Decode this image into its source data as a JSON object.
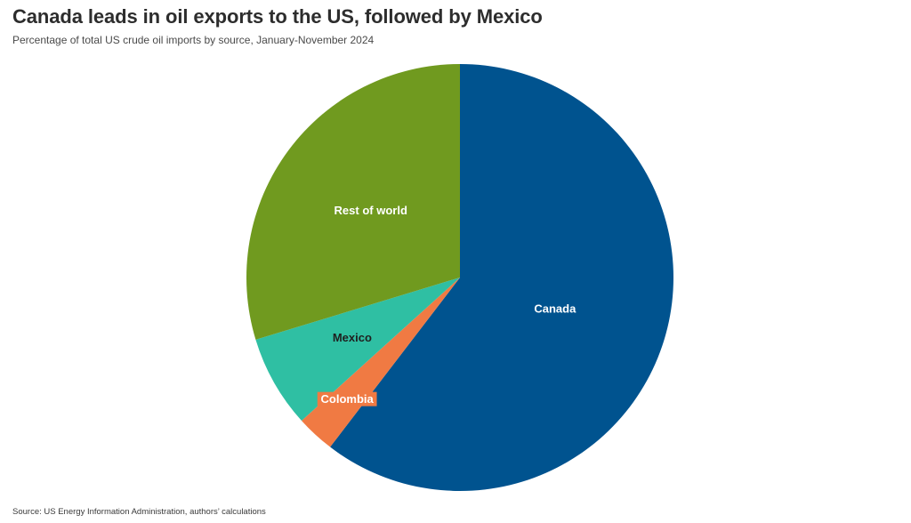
{
  "header": {
    "title": "Canada leads in oil exports to the US, followed by Mexico",
    "subtitle": "Percentage of total US crude oil imports by source, January-November 2024"
  },
  "footer": {
    "source": "Source: US Energy Information Administration, authors’ calculations"
  },
  "chart_data": {
    "type": "pie",
    "title": "Canada leads in oil exports to the US, followed by Mexico",
    "subtitle": "Percentage of total US crude oil imports by source, January-November 2024",
    "start_angle": "12 o'clock",
    "direction": "clockwise",
    "slices": [
      {
        "label": "Canada",
        "value": 60.4,
        "color": "#00538f",
        "label_color": "#ffffff"
      },
      {
        "label": "Colombia",
        "value": 2.9,
        "color": "#f07a43",
        "label_color": "#ffffff"
      },
      {
        "label": "Mexico",
        "value": 7.0,
        "color": "#2fbfa3",
        "label_color": "#1f1f1f"
      },
      {
        "label": "Rest of world",
        "value": 29.7,
        "color": "#709a1f",
        "label_color": "#ffffff"
      }
    ]
  }
}
